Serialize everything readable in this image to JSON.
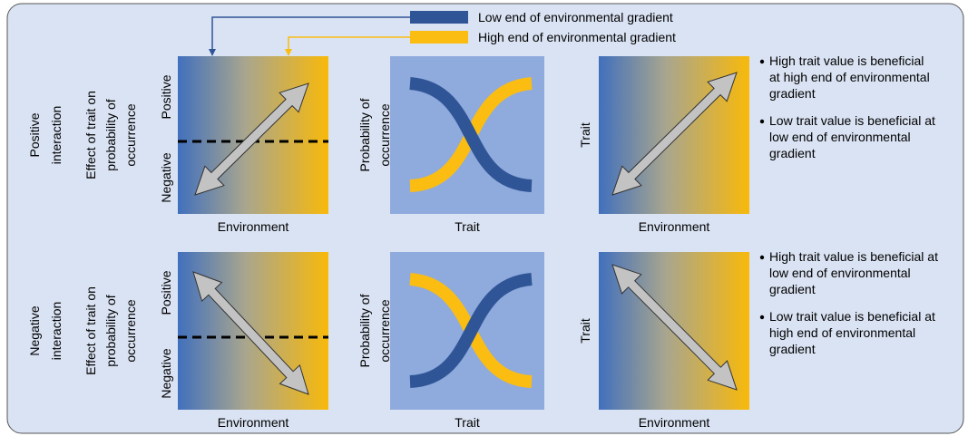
{
  "legend": [
    {
      "label": "Low end of environmental gradient",
      "color": "#2f5597"
    },
    {
      "label": "High end of environmental gradient",
      "color": "#fbbd12"
    }
  ],
  "rows": [
    {
      "label": [
        "Positive",
        "interaction"
      ],
      "panel1": {
        "ylabel": [
          "Effect of trait on",
          "probability of",
          "occurrence"
        ],
        "ytop": "Positive",
        "ybottom": "Negative",
        "xlabel": "Environment"
      },
      "panel2": {
        "ylabel": [
          "Probability of",
          "occurrence"
        ],
        "xlabel": "Trait"
      },
      "panel3": {
        "ylabel": "Trait",
        "xlabel": "Environment"
      },
      "bullets": [
        [
          "High trait value is beneficial",
          "at high end of environmental",
          "gradient"
        ],
        [
          "Low trait value is beneficial at",
          "low end of environmental",
          "gradient"
        ]
      ]
    },
    {
      "label": [
        "Negative",
        "interaction"
      ],
      "panel1": {
        "ylabel": [
          "Effect of trait on",
          "probability of",
          "occurrence"
        ],
        "ytop": "Positive",
        "ybottom": "Negative",
        "xlabel": "Environment"
      },
      "panel2": {
        "ylabel": [
          "Probability of",
          "occurrence"
        ],
        "xlabel": "Trait"
      },
      "panel3": {
        "ylabel": "Trait",
        "xlabel": "Environment"
      },
      "bullets": [
        [
          "High trait value is beneficial at",
          "low end of environmental",
          "gradient"
        ],
        [
          "Low trait value is beneficial at",
          "high end of environmental",
          "gradient"
        ]
      ]
    }
  ]
}
